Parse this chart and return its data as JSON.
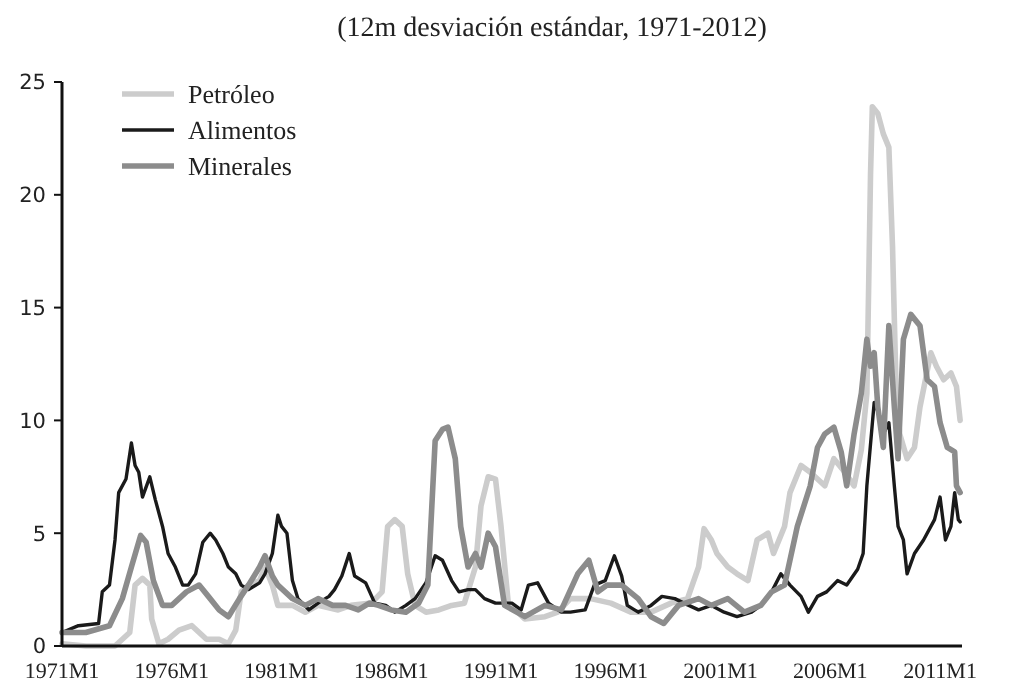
{
  "chart_data": {
    "type": "line",
    "title": "(12m desviación estándar, 1971-2012)",
    "xlim": [
      "1971-01",
      "2012-01"
    ],
    "xticks": [
      {
        "value": "1971-01",
        "label": "1971M1"
      },
      {
        "value": "1976-01",
        "label": "1976M1"
      },
      {
        "value": "1981-01",
        "label": "1981M1"
      },
      {
        "value": "1986-01",
        "label": "1986M1"
      },
      {
        "value": "1991-01",
        "label": "1991M1"
      },
      {
        "value": "1996-01",
        "label": "1996M1"
      },
      {
        "value": "2001-01",
        "label": "2001M1"
      },
      {
        "value": "2006-01",
        "label": "2006M1"
      },
      {
        "value": "2011-01",
        "label": "2011M1"
      }
    ],
    "ylim": [
      0,
      25
    ],
    "yticks": [
      0,
      5,
      10,
      15,
      20,
      25
    ],
    "grid": false,
    "legend": "top left",
    "line_style": "solid",
    "marker": "none",
    "series": [
      {
        "name": "Petróleo",
        "color": "#cccccc",
        "x": [
          "1971-01",
          "1972-02",
          "1973-06",
          "1974-02",
          "1974-05",
          "1974-09",
          "1975-01",
          "1975-02",
          "1975-06",
          "1975-11",
          "1976-05",
          "1976-12",
          "1977-08",
          "1978-03",
          "1978-08",
          "1978-12",
          "1979-03",
          "1979-07",
          "1980-01",
          "1980-04",
          "1980-08",
          "1980-11",
          "1981-07",
          "1982-02",
          "1982-09",
          "1983-08",
          "1984-03",
          "1985-02",
          "1985-08",
          "1985-11",
          "1986-03",
          "1986-07",
          "1986-10",
          "1987-02",
          "1987-08",
          "1988-03",
          "1988-10",
          "1989-05",
          "1989-11",
          "1990-02",
          "1990-06",
          "1990-10",
          "1991-01",
          "1991-05",
          "1992-02",
          "1993-01",
          "1993-08",
          "1994-03",
          "1995-02",
          "1996-01",
          "1996-12",
          "1997-11",
          "1998-10",
          "1999-07",
          "2000-01",
          "2000-04",
          "2000-08",
          "2000-11",
          "2001-05",
          "2001-10",
          "2002-04",
          "2002-09",
          "2003-03",
          "2003-06",
          "2003-12",
          "2004-03",
          "2004-09",
          "2005-02",
          "2005-10",
          "2006-03",
          "2006-09",
          "2007-02",
          "2007-06",
          "2007-09",
          "2007-11",
          "2007-12",
          "2008-03",
          "2008-06",
          "2008-09",
          "2008-11",
          "2009-01",
          "2009-03",
          "2009-07",
          "2009-11",
          "2010-02",
          "2010-08",
          "2010-11",
          "2011-03",
          "2011-07",
          "2011-10",
          "2011-12"
        ],
        "values": [
          0.1,
          0.0,
          0.0,
          0.6,
          2.7,
          3.0,
          2.7,
          1.2,
          0.1,
          0.3,
          0.7,
          0.9,
          0.3,
          0.3,
          0.1,
          0.7,
          2.4,
          2.7,
          2.9,
          3.5,
          2.7,
          1.8,
          1.8,
          1.5,
          1.8,
          1.6,
          1.8,
          1.9,
          2.4,
          5.3,
          5.6,
          5.3,
          3.2,
          1.8,
          1.5,
          1.6,
          1.8,
          1.9,
          3.5,
          6.2,
          7.5,
          7.4,
          5.3,
          1.9,
          1.2,
          1.3,
          1.5,
          2.1,
          2.1,
          1.9,
          1.5,
          1.5,
          1.9,
          2.1,
          3.5,
          5.2,
          4.7,
          4.1,
          3.5,
          3.2,
          2.9,
          4.7,
          5.0,
          4.1,
          5.3,
          6.8,
          8.0,
          7.7,
          7.1,
          8.3,
          7.7,
          7.1,
          8.7,
          11.2,
          20.9,
          23.9,
          23.6,
          22.7,
          22.1,
          17.7,
          11.2,
          9.4,
          8.3,
          8.8,
          10.6,
          13.0,
          12.4,
          11.8,
          12.1,
          11.5,
          10.0
        ]
      },
      {
        "name": "Alimentos",
        "color": "#1a1a1a",
        "x": [
          "1971-01",
          "1971-10",
          "1972-09",
          "1972-11",
          "1973-03",
          "1973-06",
          "1973-08",
          "1973-12",
          "1974-03",
          "1974-05",
          "1974-07",
          "1974-09",
          "1975-01",
          "1975-04",
          "1975-08",
          "1975-11",
          "1976-03",
          "1976-07",
          "1976-10",
          "1977-02",
          "1977-06",
          "1977-10",
          "1978-01",
          "1978-05",
          "1978-08",
          "1978-12",
          "1979-03",
          "1979-07",
          "1980-01",
          "1980-04",
          "1980-08",
          "1980-11",
          "1981-01",
          "1981-04",
          "1981-07",
          "1981-10",
          "1982-04",
          "1982-09",
          "1983-03",
          "1983-06",
          "1983-10",
          "1984-02",
          "1984-05",
          "1984-11",
          "1985-04",
          "1985-10",
          "1986-03",
          "1986-09",
          "1987-02",
          "1987-08",
          "1988-01",
          "1988-05",
          "1988-10",
          "1989-02",
          "1989-07",
          "1989-11",
          "1990-04",
          "1990-10",
          "1991-07",
          "1991-12",
          "1992-04",
          "1992-09",
          "1993-03",
          "1993-10",
          "1994-03",
          "1994-11",
          "1995-04",
          "1995-10",
          "1996-03",
          "1996-07",
          "1996-10",
          "1997-04",
          "1997-11",
          "1998-05",
          "1998-12",
          "1999-05",
          "2000-01",
          "2000-08",
          "2001-03",
          "2001-10",
          "2002-06",
          "2002-11",
          "2003-05",
          "2003-10",
          "2004-03",
          "2004-09",
          "2005-01",
          "2005-06",
          "2005-11",
          "2006-05",
          "2006-10",
          "2007-04",
          "2007-07",
          "2007-09",
          "2008-01",
          "2008-05",
          "2008-06",
          "2008-09",
          "2008-12",
          "2009-02",
          "2009-05",
          "2009-07",
          "2009-11",
          "2010-04",
          "2010-10",
          "2011-01",
          "2011-04",
          "2011-07",
          "2011-09",
          "2011-11",
          "2011-12"
        ],
        "values": [
          0.6,
          0.9,
          1.0,
          2.4,
          2.7,
          4.7,
          6.8,
          7.4,
          9.0,
          8.0,
          7.7,
          6.6,
          7.5,
          6.5,
          5.3,
          4.1,
          3.5,
          2.7,
          2.7,
          3.2,
          4.6,
          5.0,
          4.7,
          4.1,
          3.5,
          3.2,
          2.7,
          2.5,
          2.8,
          3.2,
          4.1,
          5.8,
          5.3,
          5.0,
          2.9,
          2.1,
          1.6,
          1.9,
          2.2,
          2.5,
          3.1,
          4.1,
          3.1,
          2.8,
          1.9,
          1.8,
          1.5,
          1.8,
          2.1,
          2.8,
          4.0,
          3.8,
          2.9,
          2.4,
          2.5,
          2.5,
          2.1,
          1.9,
          1.9,
          1.6,
          2.7,
          2.8,
          1.9,
          1.5,
          1.5,
          1.6,
          2.7,
          2.9,
          4.0,
          3.1,
          1.8,
          1.5,
          1.8,
          2.2,
          2.1,
          1.9,
          1.6,
          1.8,
          1.5,
          1.3,
          1.5,
          1.8,
          2.4,
          3.2,
          2.7,
          2.2,
          1.5,
          2.2,
          2.4,
          2.9,
          2.7,
          3.4,
          4.1,
          7.1,
          10.8,
          10.0,
          9.4,
          9.9,
          7.1,
          5.3,
          4.7,
          3.2,
          4.1,
          4.7,
          5.6,
          6.6,
          4.7,
          5.3,
          6.8,
          5.6,
          5.5
        ]
      },
      {
        "name": "Minerales",
        "color": "#8c8c8c",
        "x": [
          "1971-01",
          "1972-02",
          "1973-03",
          "1973-10",
          "1974-03",
          "1974-08",
          "1974-11",
          "1975-03",
          "1975-08",
          "1976-01",
          "1976-09",
          "1977-04",
          "1977-09",
          "1978-03",
          "1978-08",
          "1979-02",
          "1979-07",
          "1980-01",
          "1980-04",
          "1980-08",
          "1980-11",
          "1981-07",
          "1982-02",
          "1982-09",
          "1983-05",
          "1983-12",
          "1984-07",
          "1985-01",
          "1985-06",
          "1986-01",
          "1986-09",
          "1987-04",
          "1987-09",
          "1988-01",
          "1988-05",
          "1988-08",
          "1988-12",
          "1989-03",
          "1989-07",
          "1989-11",
          "1990-02",
          "1990-06",
          "1990-10",
          "1991-03",
          "1992-02",
          "1993-01",
          "1993-10",
          "1994-07",
          "1995-01",
          "1995-06",
          "1995-11",
          "1996-07",
          "1997-04",
          "1997-11",
          "1998-06",
          "1999-02",
          "2000-01",
          "2000-08",
          "2001-05",
          "2002-02",
          "2002-11",
          "2003-05",
          "2003-12",
          "2004-07",
          "2005-02",
          "2005-06",
          "2005-10",
          "2006-03",
          "2006-07",
          "2006-10",
          "2007-02",
          "2007-06",
          "2007-09",
          "2007-11",
          "2008-01",
          "2008-03",
          "2008-06",
          "2008-09",
          "2008-12",
          "2009-02",
          "2009-05",
          "2009-09",
          "2010-02",
          "2010-06",
          "2010-10",
          "2011-01",
          "2011-05",
          "2011-09",
          "2011-10",
          "2011-12"
        ],
        "values": [
          0.6,
          0.6,
          0.9,
          2.1,
          3.5,
          4.9,
          4.6,
          2.9,
          1.8,
          1.8,
          2.4,
          2.7,
          2.2,
          1.6,
          1.3,
          2.1,
          2.7,
          3.5,
          4.0,
          3.1,
          2.7,
          2.1,
          1.8,
          2.1,
          1.8,
          1.8,
          1.6,
          1.9,
          1.8,
          1.6,
          1.5,
          1.9,
          2.7,
          9.1,
          9.6,
          9.7,
          8.3,
          5.3,
          3.5,
          4.1,
          3.5,
          5.0,
          4.4,
          1.8,
          1.3,
          1.8,
          1.6,
          3.2,
          3.8,
          2.4,
          2.7,
          2.7,
          2.1,
          1.3,
          1.0,
          1.8,
          2.1,
          1.8,
          2.1,
          1.5,
          1.8,
          2.4,
          2.7,
          5.3,
          7.1,
          8.8,
          9.4,
          9.7,
          8.6,
          7.1,
          9.4,
          11.2,
          13.6,
          12.4,
          13.0,
          10.6,
          8.8,
          14.2,
          10.6,
          8.3,
          13.6,
          14.7,
          14.2,
          11.8,
          11.5,
          9.9,
          8.8,
          8.6,
          7.1,
          6.8
        ]
      }
    ]
  }
}
